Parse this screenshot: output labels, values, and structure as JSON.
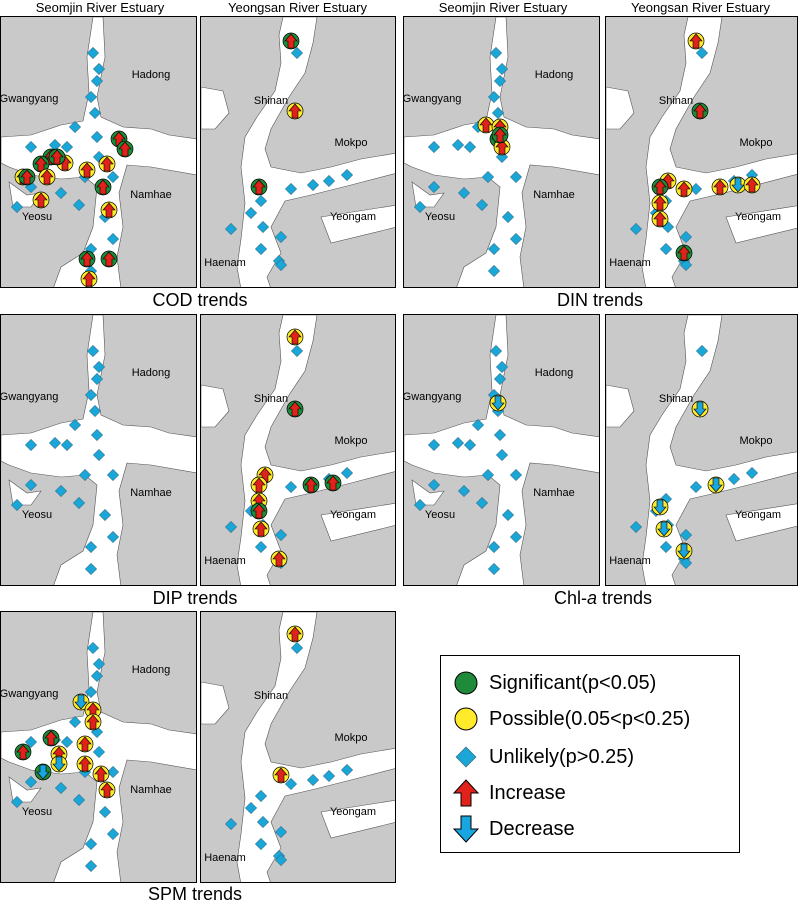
{
  "colors": {
    "land": "#c9c9c9",
    "water": "#ffffff",
    "significant": "#1e8a3a",
    "possible": "#ffeb2a",
    "unlikely": "#1aa7d8",
    "increase": "#e0221b",
    "decrease": "#19a6e0"
  },
  "headers": {
    "seomjin": "Seomjin River Estuary",
    "yeongsan": "Yeongsan River Estuary"
  },
  "places": {
    "seomjin": [
      "Hadong",
      "Gwangyang",
      "Namhae",
      "Yeosu"
    ],
    "yeongsan": [
      "Shinan",
      "Mokpo",
      "Yeongam",
      "Haenam"
    ]
  },
  "panels": [
    {
      "title": "COD trends",
      "seomjin": [
        [
          "S",
          "I"
        ],
        [
          "S",
          "I"
        ],
        [
          "S",
          "I"
        ],
        [
          "S",
          "I"
        ],
        [
          "P",
          "I"
        ],
        [
          "P",
          "I"
        ],
        [
          "P",
          "I"
        ],
        [
          "P",
          "I"
        ],
        [
          "P",
          "I"
        ],
        [
          "P",
          "I"
        ],
        [
          "S",
          "I"
        ],
        [
          "P",
          "I"
        ],
        [
          "S",
          "I"
        ],
        [
          "S",
          "I"
        ],
        [
          "P",
          "I"
        ],
        [
          "S",
          "I"
        ],
        [
          "S",
          "I"
        ]
      ],
      "yeongsan": [
        [
          "S",
          "I"
        ],
        [
          "P",
          "I"
        ],
        [
          "S",
          "I"
        ]
      ]
    },
    {
      "title": "DIN trends",
      "seomjin": [
        [
          "P",
          "I"
        ],
        [
          "P",
          "I"
        ],
        [
          "S",
          "I"
        ],
        [
          "P",
          "I"
        ],
        [
          "S",
          "I"
        ]
      ],
      "yeongsan": [
        [
          "P",
          "I"
        ],
        [
          "S",
          "I"
        ],
        [
          "P",
          "I"
        ],
        [
          "S",
          "I"
        ],
        [
          "P",
          "I"
        ],
        [
          "P",
          "I"
        ],
        [
          "P",
          "D"
        ],
        [
          "P",
          "I"
        ],
        [
          "P",
          "I"
        ],
        [
          "P",
          "I"
        ],
        [
          "S",
          "I"
        ]
      ]
    },
    {
      "title": "DIP trends",
      "seomjin": [],
      "yeongsan": [
        [
          "P",
          "I"
        ],
        [
          "S",
          "I"
        ],
        [
          "P",
          "I"
        ],
        [
          "P",
          "I"
        ],
        [
          "S",
          "I"
        ],
        [
          "S",
          "I"
        ],
        [
          "P",
          "I"
        ],
        [
          "S",
          "I"
        ],
        [
          "P",
          "I"
        ],
        [
          "P",
          "I"
        ]
      ]
    },
    {
      "title": "Chl-a trends",
      "seomjin": [
        [
          "P",
          "D"
        ]
      ],
      "yeongsan": [
        [
          "P",
          "D"
        ],
        [
          "P",
          "D"
        ],
        [
          "P",
          "D"
        ],
        [
          "P",
          "D"
        ],
        [
          "P",
          "D"
        ]
      ]
    },
    {
      "title": "SPM trends",
      "seomjin": [
        [
          "P",
          "D"
        ],
        [
          "P",
          "I"
        ],
        [
          "P",
          "I"
        ],
        [
          "S",
          "I"
        ],
        [
          "P",
          "I"
        ],
        [
          "S",
          "I"
        ],
        [
          "P",
          "I"
        ],
        [
          "S",
          "D"
        ],
        [
          "P",
          "D"
        ],
        [
          "P",
          "I"
        ],
        [
          "P",
          "I"
        ],
        [
          "P",
          "I"
        ]
      ],
      "yeongsan": [
        [
          "P",
          "I"
        ],
        [
          "P",
          "I"
        ]
      ]
    }
  ],
  "legend": {
    "significant": "Significant(p<0.05)",
    "possible": "Possible(0.05<p<0.25)",
    "unlikely": "Unlikely(p>0.25)",
    "increase": "Increase",
    "decrease": "Decrease"
  }
}
